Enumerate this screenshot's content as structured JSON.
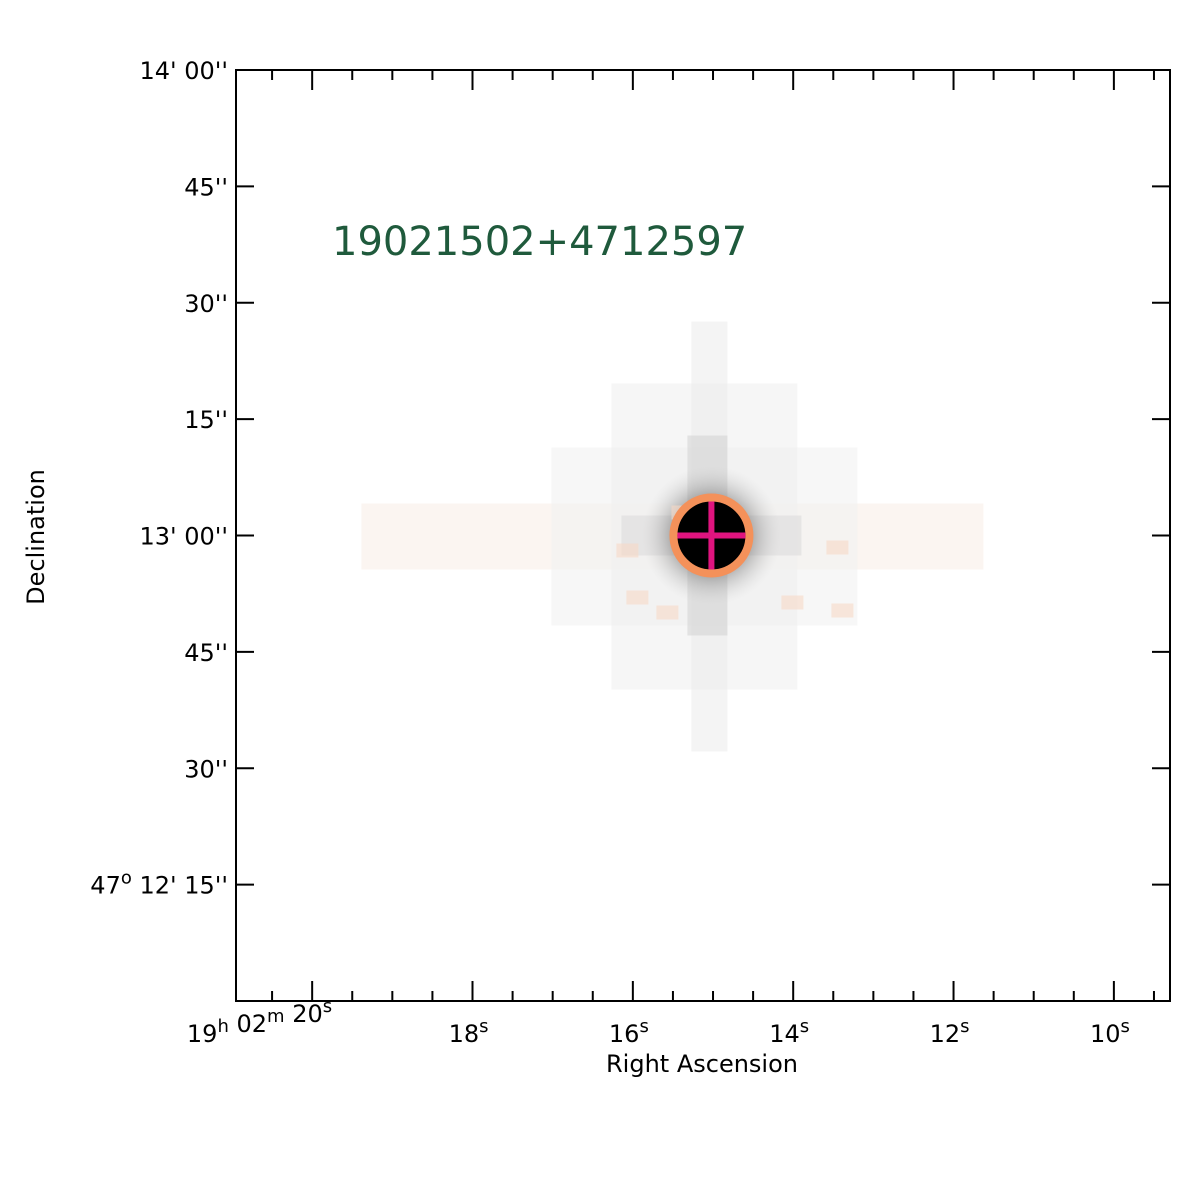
{
  "chart_data": {
    "type": "image",
    "title": "19021502+4712597",
    "title_color": "#1f5a3c",
    "xlabel": "Right Ascension",
    "ylabel": "Declination",
    "grid": false,
    "x_ticks": [
      {
        "ra_seconds": 20,
        "parts": [
          [
            "19",
            "h"
          ],
          [
            " 02",
            "m"
          ],
          [
            " 20",
            "s"
          ]
        ]
      },
      {
        "ra_seconds": 18,
        "parts": [
          [
            "18",
            "s"
          ]
        ]
      },
      {
        "ra_seconds": 16,
        "parts": [
          [
            "16",
            "s"
          ]
        ]
      },
      {
        "ra_seconds": 14,
        "parts": [
          [
            "14",
            "s"
          ]
        ]
      },
      {
        "ra_seconds": 12,
        "parts": [
          [
            "12",
            "s"
          ]
        ]
      },
      {
        "ra_seconds": 10,
        "parts": [
          [
            "10",
            "s"
          ]
        ]
      }
    ],
    "x_minor_step_seconds": 0.5,
    "y_ticks": [
      {
        "dec_arcsec": 60,
        "text": "14' 00''"
      },
      {
        "dec_arcsec": 45,
        "text": "45''"
      },
      {
        "dec_arcsec": 30,
        "text": "30''"
      },
      {
        "dec_arcsec": 15,
        "text": "15''"
      },
      {
        "dec_arcsec": 0,
        "text": "13' 00''"
      },
      {
        "dec_arcsec": -15,
        "text": "45''"
      },
      {
        "dec_arcsec": -30,
        "text": "30''"
      },
      {
        "dec_arcsec": -45,
        "text": "12' 15''",
        "prefix": [
          "47",
          "o"
        ]
      }
    ],
    "xlim_ra_seconds": [
      20.95,
      9.3
    ],
    "ylim_dec_arcsec": [
      -60,
      60
    ],
    "target": {
      "ra_seconds": 15.02,
      "dec_arcsec": 0,
      "circle_color": "#f4915a",
      "cross_color": "#e0147f",
      "core_color": "#000000"
    }
  }
}
